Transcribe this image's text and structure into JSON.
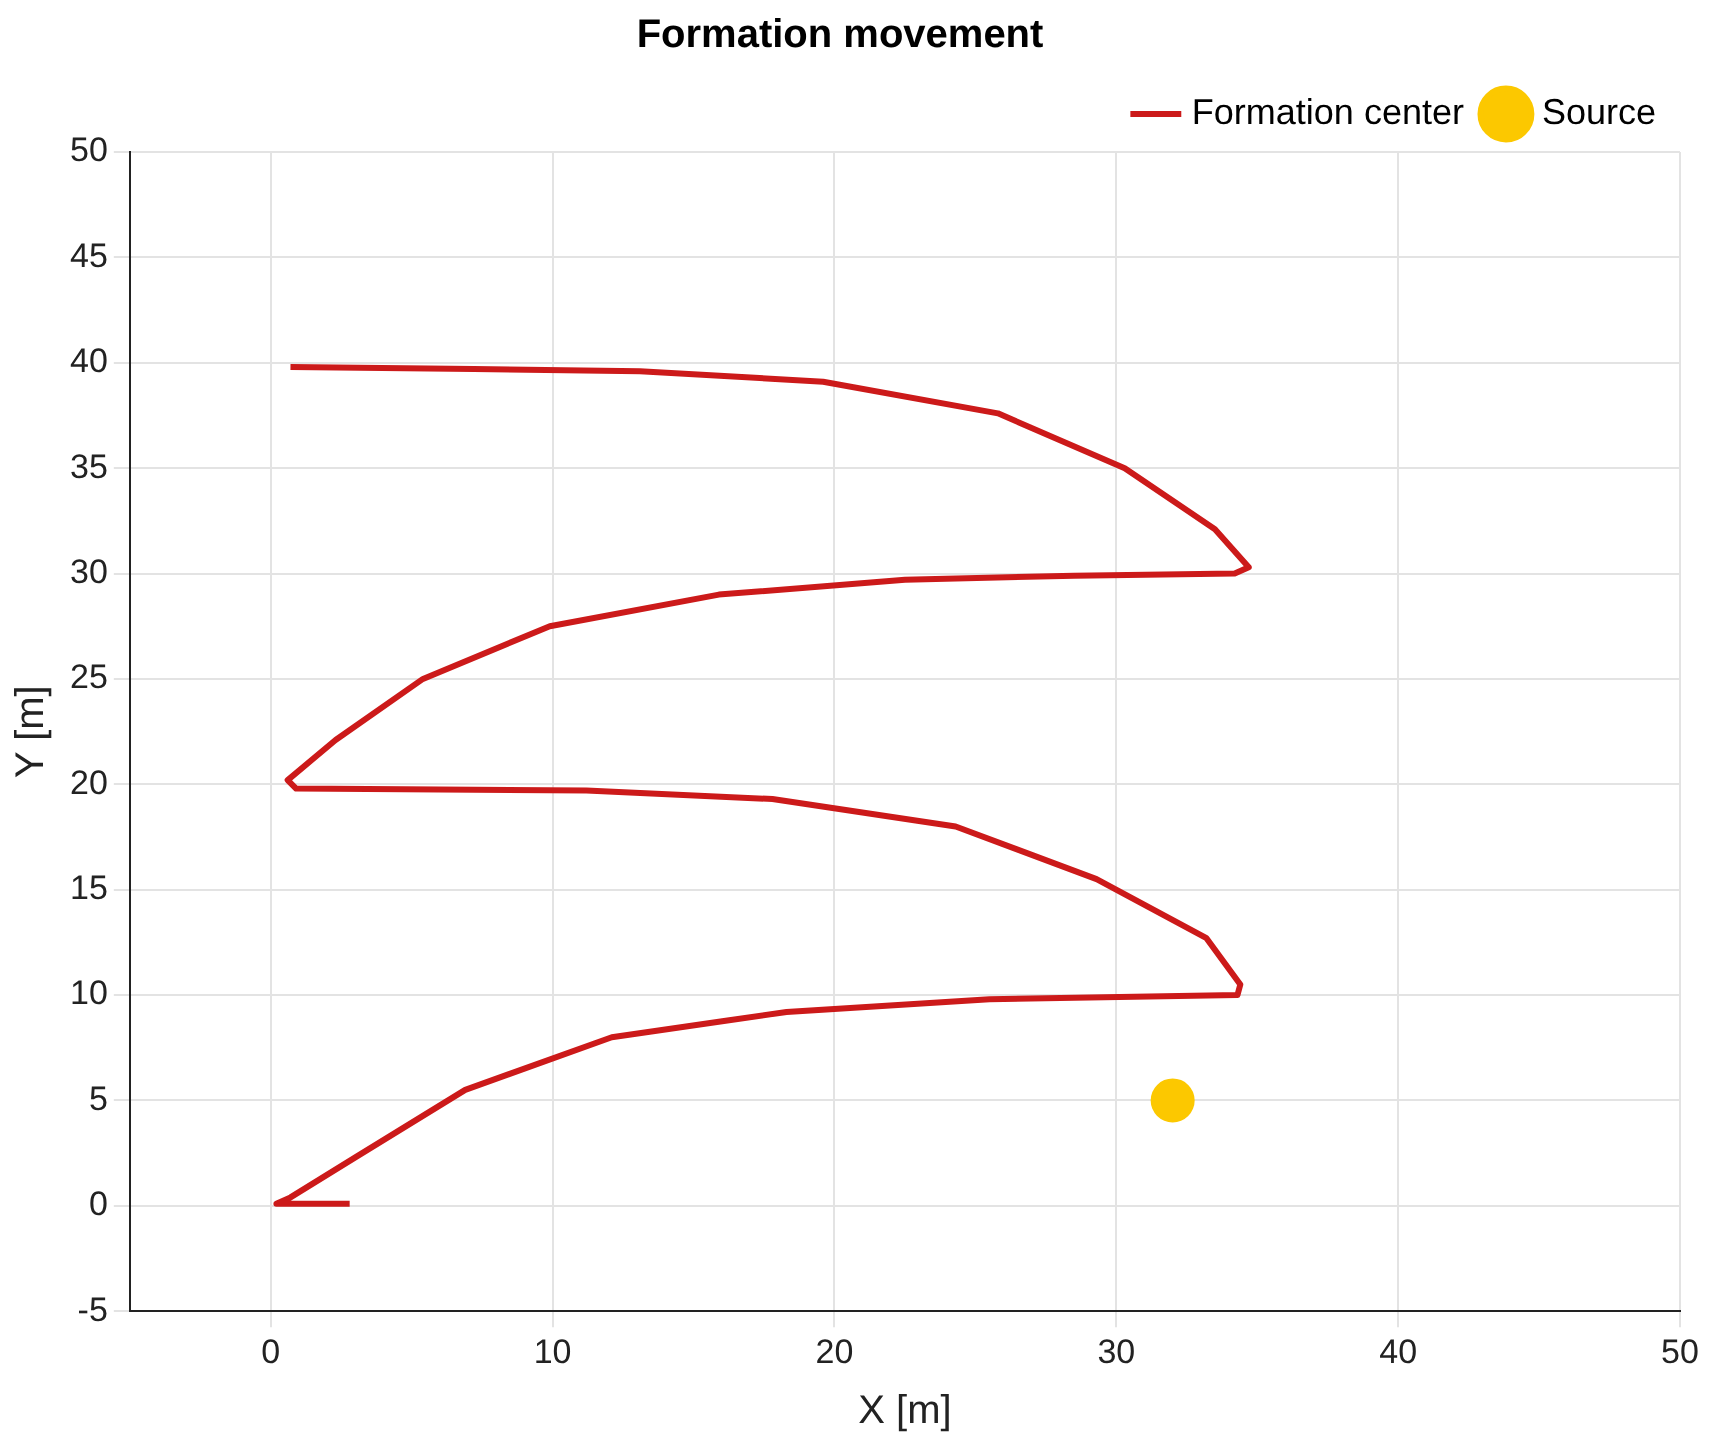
{
  "chart_data": {
    "type": "line",
    "title": "Formation movement",
    "xlabel": "X [m]",
    "ylabel": "Y [m]",
    "xlim": [
      -5,
      50
    ],
    "xticks": [
      0,
      10,
      20,
      30,
      40,
      50
    ],
    "ylim": [
      -5,
      50
    ],
    "yticks": [
      -5,
      0,
      5,
      10,
      15,
      20,
      25,
      30,
      35,
      40,
      45,
      50
    ],
    "grid": true,
    "legend": "top right",
    "series": [
      {
        "name": "Formation center",
        "color": "#cc1a1a",
        "marker": "none",
        "x": [
          2.8,
          0.2,
          0.7,
          3,
          6.9,
          12.1,
          18.3,
          25.5,
          34.3,
          34.4,
          33.2,
          29.3,
          24.3,
          17.8,
          11.2,
          0.9,
          0.6,
          2.3,
          5.4,
          9.9,
          15.9,
          22.5,
          28.5,
          34.2,
          34.7,
          33.5,
          30.3,
          25.8,
          19.6,
          13.1,
          7.2,
          0.7
        ],
        "values": [
          0.1,
          0.1,
          0.4,
          2.3,
          5.5,
          8,
          9.2,
          9.8,
          10,
          10.5,
          12.7,
          15.5,
          18,
          19.3,
          19.7,
          19.8,
          20.2,
          22.1,
          25,
          27.5,
          29,
          29.7,
          29.9,
          30,
          30.3,
          32.1,
          35,
          37.6,
          39.1,
          39.6,
          39.7,
          39.8
        ]
      },
      {
        "name": "Source",
        "type": "scatter",
        "color": "#fcc800",
        "marker": "circle",
        "x": [
          32
        ],
        "values": [
          5
        ]
      }
    ]
  }
}
